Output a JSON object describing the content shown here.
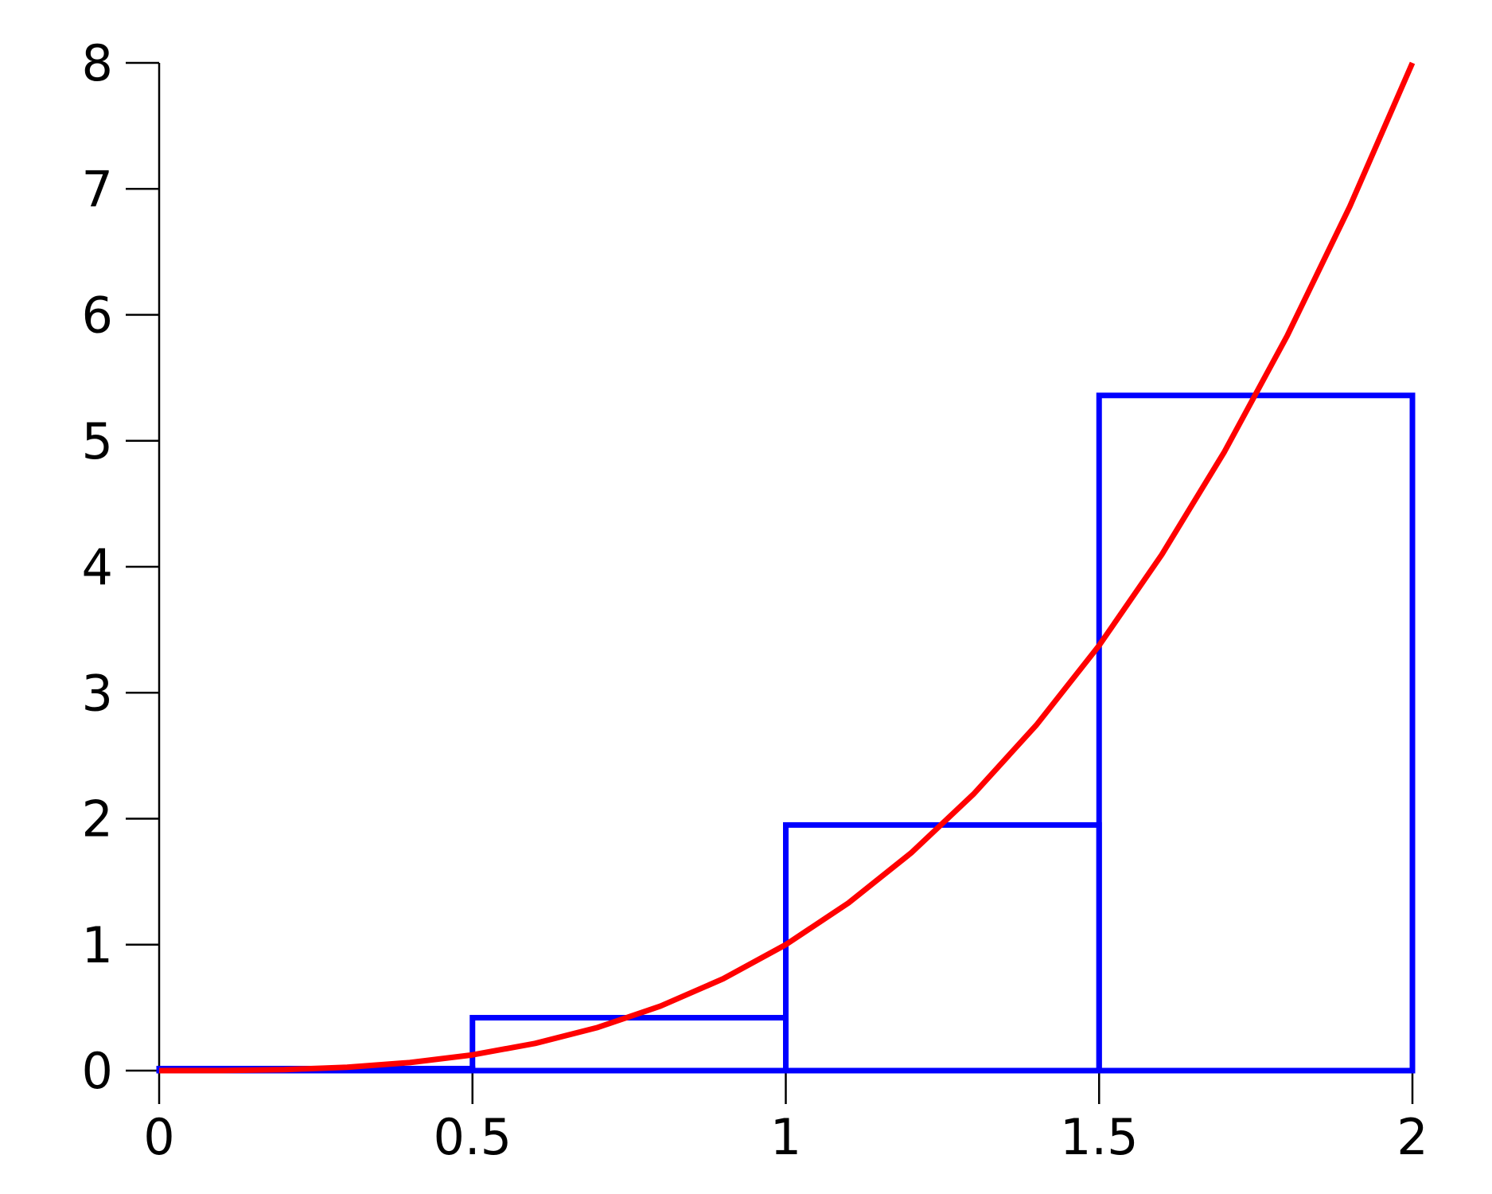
{
  "chart_data": [
    {
      "type": "histogram",
      "bins": [
        0,
        0.5,
        1,
        1.5,
        2
      ],
      "values": [
        0.016,
        0.42,
        1.95,
        5.36
      ],
      "color": "#0000ff",
      "xlim": [
        0,
        2
      ],
      "ylim": [
        0,
        8
      ],
      "xticks": [
        0,
        0.5,
        1,
        1.5,
        2
      ],
      "yticks": [
        0,
        1,
        2,
        3,
        4,
        5,
        6,
        7,
        8
      ]
    },
    {
      "type": "line",
      "x": [
        0,
        0.1,
        0.2,
        0.3,
        0.4,
        0.5,
        0.6,
        0.7,
        0.8,
        0.9,
        1,
        1.1,
        1.2,
        1.3,
        1.4,
        1.5,
        1.6,
        1.7,
        1.8,
        1.9,
        2
      ],
      "values": [
        0,
        0.001,
        0.008,
        0.027,
        0.064,
        0.125,
        0.216,
        0.343,
        0.512,
        0.729,
        1,
        1.331,
        1.728,
        2.197,
        2.744,
        3.375,
        4.096,
        4.913,
        5.832,
        6.859,
        8
      ],
      "color": "#ff0000"
    }
  ]
}
